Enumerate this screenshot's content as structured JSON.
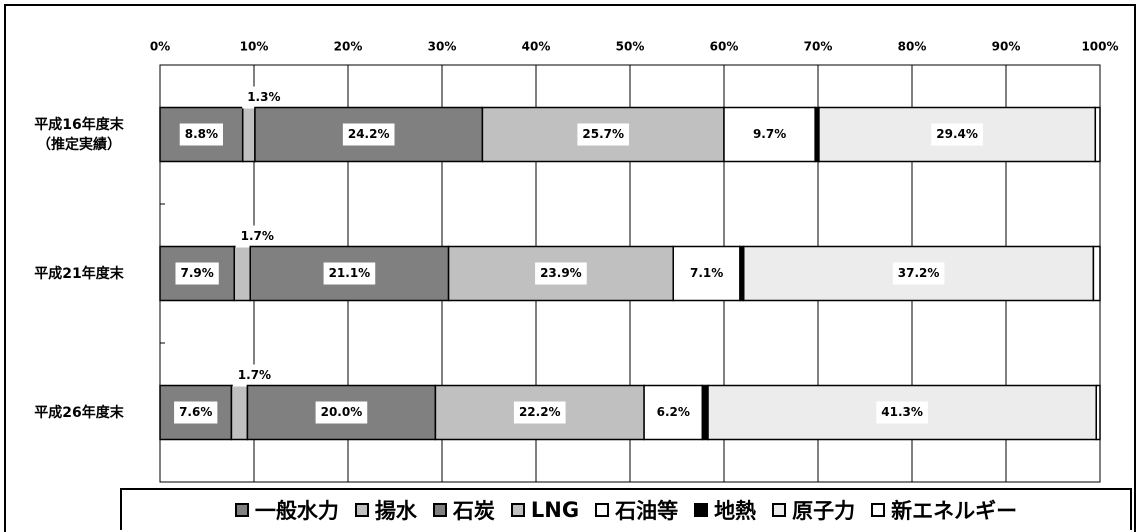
{
  "chart_data": {
    "type": "stacked-barh",
    "categories": [
      "平成16年度末\n（推定実績）",
      "平成21年度末",
      "平成26年度末"
    ],
    "series": [
      {
        "name": "一般水力",
        "color": "#808080",
        "values": [
          8.8,
          7.9,
          7.6
        ],
        "value_labels": [
          "8.8%",
          "7.9%",
          "7.6%"
        ]
      },
      {
        "name": "揚水",
        "color": "#c0c0c0",
        "values": [
          1.3,
          1.7,
          1.7
        ],
        "value_labels": [
          "1.3%",
          "1.7%",
          "1.7%"
        ]
      },
      {
        "name": "石炭",
        "color": "#808080",
        "values": [
          24.2,
          21.1,
          20.0
        ],
        "value_labels": [
          "24.2%",
          "21.1%",
          "20.0%"
        ]
      },
      {
        "name": "LNG",
        "color": "#c0c0c0",
        "values": [
          25.7,
          23.9,
          22.2
        ],
        "value_labels": [
          "25.7%",
          "23.9%",
          "22.2%"
        ]
      },
      {
        "name": "石油等",
        "color": "#ffffff",
        "values": [
          9.7,
          7.1,
          6.2
        ],
        "value_labels": [
          "9.7%",
          "7.1%",
          "6.2%"
        ]
      },
      {
        "name": "地熱",
        "color": "#000000",
        "values": [
          0.4,
          0.4,
          0.6
        ]
      },
      {
        "name": "原子力",
        "color": "#ececec",
        "values": [
          29.4,
          37.2,
          41.3
        ],
        "value_labels": [
          "29.4%",
          "37.2%",
          "41.3%"
        ]
      },
      {
        "name": "新エネルギー",
        "color": "#ffffff",
        "values": [
          0.5,
          0.7,
          0.4
        ]
      }
    ],
    "xlim": [
      0,
      100
    ],
    "xticks": [
      {
        "value": 0,
        "label": "0%"
      },
      {
        "value": 10,
        "label": "10%"
      },
      {
        "value": 20,
        "label": "20%"
      },
      {
        "value": 30,
        "label": "30%"
      },
      {
        "value": 40,
        "label": "40%"
      },
      {
        "value": 50,
        "label": "50%"
      },
      {
        "value": 60,
        "label": "60%"
      },
      {
        "value": 70,
        "label": "70%"
      },
      {
        "value": 80,
        "label": "80%"
      },
      {
        "value": 90,
        "label": "90%"
      },
      {
        "value": 100,
        "label": "100%"
      }
    ],
    "grid": true
  }
}
